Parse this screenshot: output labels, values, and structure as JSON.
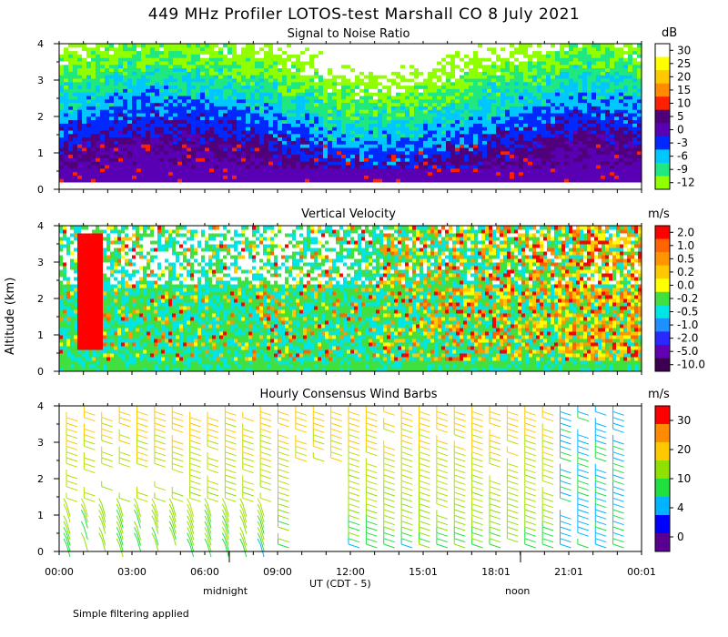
{
  "title": "449 MHz Profiler LOTOS-test Marshall CO  8 July 2021",
  "y_axis_label": "Altitude (km)",
  "x_axis": {
    "ticks": [
      "00:00",
      "03:00",
      "06:00",
      "09:00",
      "12:00",
      "15:01",
      "18:01",
      "21:01",
      "00:01"
    ],
    "label": "UT  (CDT - 5)",
    "midnight_label": "midnight",
    "noon_label": "noon"
  },
  "footer_note": "Simple filtering applied",
  "chart_data": [
    {
      "type": "heatmap",
      "title": "Signal to Noise Ratio",
      "unit": "dB",
      "ylim": [
        0,
        4
      ],
      "y_ticks": [
        "0",
        "1",
        "2",
        "3",
        "4"
      ],
      "colorbar_labels": [
        "30",
        "25",
        "20",
        "15",
        "10",
        "5",
        "0",
        "-3",
        "-6",
        "-9",
        "-12"
      ],
      "colorbar_colors": [
        "#ffffff",
        "#ffff00",
        "#ffc800",
        "#ff8c00",
        "#ff2000",
        "#50007a",
        "#5a00b4",
        "#0028ff",
        "#00c8ff",
        "#20e880",
        "#90ff00"
      ]
    },
    {
      "type": "heatmap",
      "title": "Vertical Velocity",
      "unit": "m/s",
      "ylim": [
        0,
        4
      ],
      "y_ticks": [
        "0",
        "1",
        "2",
        "3",
        "4"
      ],
      "colorbar_labels": [
        "2.0",
        "1.0",
        "0.5",
        "0.2",
        "0.0",
        "-0.2",
        "-0.5",
        "-1.0",
        "-2.0",
        "-5.0",
        "-10.0"
      ],
      "colorbar_colors": [
        "#ff0000",
        "#ff6400",
        "#ff9600",
        "#ffc800",
        "#ffff00",
        "#40e040",
        "#00e6e6",
        "#1e90ff",
        "#2828ff",
        "#6400b4",
        "#3c0050"
      ]
    },
    {
      "type": "scatter",
      "title": "Hourly Consensus Wind Barbs",
      "unit": "m/s",
      "ylim": [
        0,
        4
      ],
      "y_ticks": [
        "0",
        "1",
        "2",
        "3",
        "4"
      ],
      "colorbar_labels": [
        "30",
        "20",
        "10",
        "4",
        "0"
      ],
      "colorbar_colors": [
        "#ff0000",
        "#ff8c00",
        "#ffc800",
        "#90e000",
        "#20e040",
        "#00b4ff",
        "#0000ff",
        "#5a0090"
      ]
    }
  ]
}
